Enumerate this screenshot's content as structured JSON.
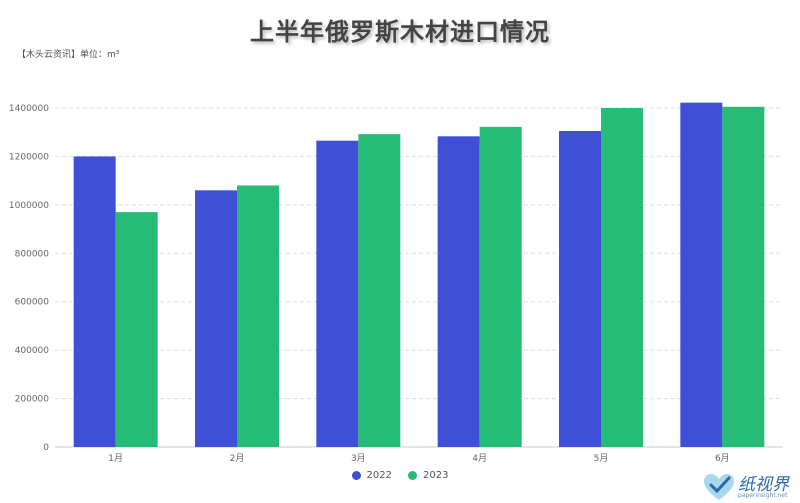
{
  "chart_data": {
    "type": "bar",
    "title": "上半年俄罗斯木材进口情况",
    "subtitle": "【木头云资讯】单位：m³",
    "categories": [
      "1月",
      "2月",
      "3月",
      "4月",
      "5月",
      "6月"
    ],
    "series": [
      {
        "name": "2022",
        "color": "#3f4fd6",
        "values": [
          1200000,
          1060000,
          1265000,
          1283000,
          1305000,
          1422000
        ]
      },
      {
        "name": "2023",
        "color": "#26bb76",
        "values": [
          970000,
          1080000,
          1292000,
          1322000,
          1400000,
          1405000
        ]
      }
    ],
    "ylim": [
      0,
      1400000
    ],
    "yticks": [
      0,
      200000,
      400000,
      600000,
      800000,
      1000000,
      1200000,
      1400000
    ],
    "grid": true,
    "legend_position": "bottom-center"
  },
  "watermark": {
    "text": "纸视界",
    "url": "paperinsight.net",
    "icon": "heart-check-logo-icon"
  }
}
